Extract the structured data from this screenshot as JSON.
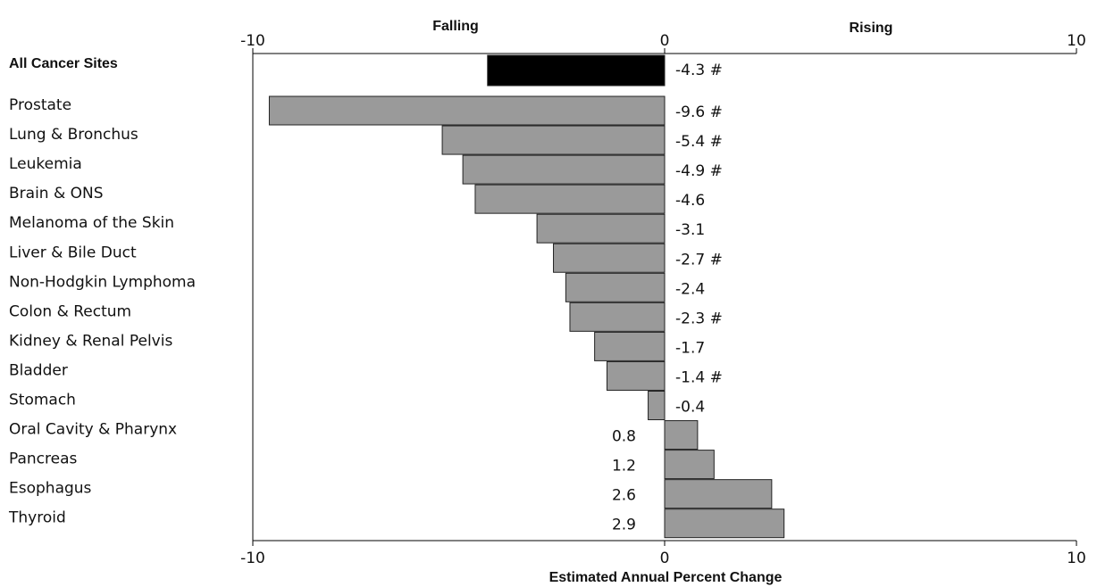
{
  "chart_data": {
    "type": "barh",
    "left_label": "Falling",
    "right_label": "Rising",
    "xlabel": "Estimated Annual Percent Change",
    "categories": [
      "All Cancer Sites",
      "Prostate",
      "Lung & Bronchus",
      "Leukemia",
      "Brain & ONS",
      "Melanoma of the Skin",
      "Liver & Bile Duct",
      "Non-Hodgkin Lymphoma",
      "Colon & Rectum",
      "Kidney & Renal Pelvis",
      "Bladder",
      "Stomach",
      "Oral Cavity & Pharynx",
      "Pancreas",
      "Esophagus",
      "Thyroid"
    ],
    "values": [
      -4.3,
      -9.6,
      -5.4,
      -4.9,
      -4.6,
      -3.1,
      -2.7,
      -2.4,
      -2.3,
      -1.7,
      -1.4,
      -0.4,
      0.8,
      1.2,
      2.6,
      2.9
    ],
    "value_labels": [
      "-4.3 #",
      "-9.6 #",
      "-5.4 #",
      "-4.9 #",
      "-4.6",
      "-3.1",
      "-2.7 #",
      "-2.4",
      "-2.3 #",
      "-1.7",
      "-1.4 #",
      "-0.4",
      "0.8",
      "1.2",
      "2.6",
      "2.9"
    ],
    "colors": [
      "#000000",
      "#9a9a9a",
      "#9a9a9a",
      "#9a9a9a",
      "#9a9a9a",
      "#9a9a9a",
      "#9a9a9a",
      "#9a9a9a",
      "#9a9a9a",
      "#9a9a9a",
      "#9a9a9a",
      "#9a9a9a",
      "#9a9a9a",
      "#9a9a9a",
      "#9a9a9a",
      "#9a9a9a"
    ],
    "xlim": [
      -10,
      10
    ],
    "xticks": [
      -10,
      0,
      10
    ]
  }
}
